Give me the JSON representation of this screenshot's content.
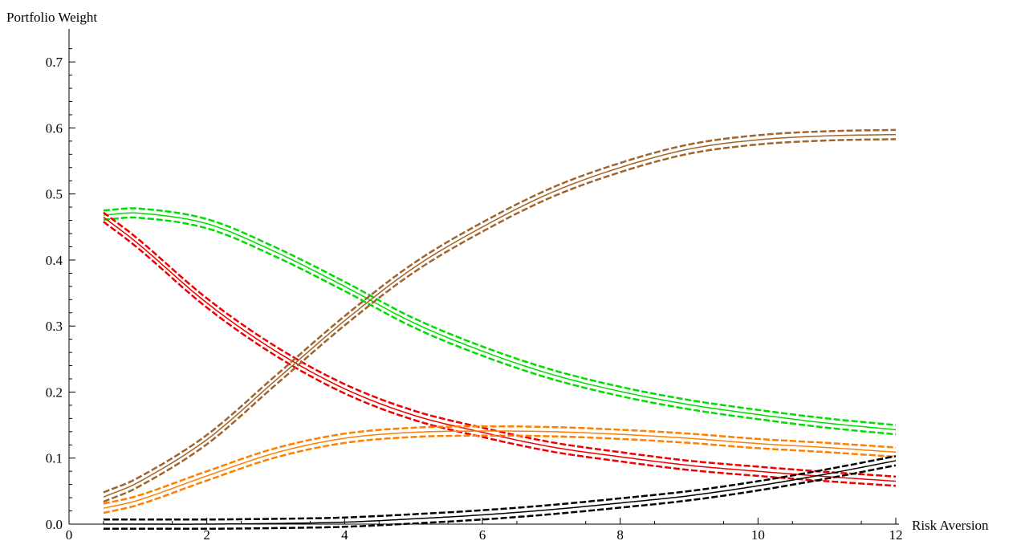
{
  "chart_data": {
    "type": "line",
    "xlabel": "Risk Aversion",
    "ylabel": "Portfolio Weight",
    "xlim": [
      0,
      12
    ],
    "ylim": [
      0,
      0.75
    ],
    "x_ticks": [
      {
        "value": 0,
        "label": "0"
      },
      {
        "value": 2,
        "label": "2"
      },
      {
        "value": 4,
        "label": "4"
      },
      {
        "value": 6,
        "label": "6"
      },
      {
        "value": 8,
        "label": "8"
      },
      {
        "value": 10,
        "label": "10"
      },
      {
        "value": 12,
        "label": "12"
      }
    ],
    "y_ticks": [
      {
        "value": 0.0,
        "label": "0.0"
      },
      {
        "value": 0.1,
        "label": "0.1"
      },
      {
        "value": 0.2,
        "label": "0.2"
      },
      {
        "value": 0.3,
        "label": "0.3"
      },
      {
        "value": 0.4,
        "label": "0.4"
      },
      {
        "value": 0.5,
        "label": "0.5"
      },
      {
        "value": 0.6,
        "label": "0.6"
      },
      {
        "value": 0.7,
        "label": "0.7"
      }
    ],
    "x": [
      0.5,
      1,
      2,
      3,
      4,
      5,
      6,
      7,
      8,
      9,
      10,
      11,
      12
    ],
    "band_halfwidth": 0.007,
    "grid": false,
    "series": [
      {
        "color": "#00dd00",
        "values": [
          0.468,
          0.471,
          0.455,
          0.412,
          0.36,
          0.305,
          0.262,
          0.227,
          0.201,
          0.181,
          0.166,
          0.153,
          0.143
        ]
      },
      {
        "color": "#ee0000",
        "values": [
          0.465,
          0.425,
          0.335,
          0.262,
          0.205,
          0.165,
          0.139,
          0.117,
          0.102,
          0.089,
          0.08,
          0.072,
          0.065
        ]
      },
      {
        "color": "#a0642d",
        "values": [
          0.041,
          0.063,
          0.128,
          0.218,
          0.308,
          0.388,
          0.45,
          0.502,
          0.54,
          0.568,
          0.582,
          0.588,
          0.59
        ]
      },
      {
        "color": "#ff7f00",
        "values": [
          0.024,
          0.036,
          0.073,
          0.108,
          0.13,
          0.139,
          0.141,
          0.14,
          0.136,
          0.13,
          0.122,
          0.116,
          0.109
        ]
      },
      {
        "color": "#000000",
        "values": [
          0.0,
          0.0,
          0.0,
          0.001,
          0.003,
          0.008,
          0.014,
          0.022,
          0.032,
          0.043,
          0.058,
          0.076,
          0.096
        ]
      }
    ]
  }
}
